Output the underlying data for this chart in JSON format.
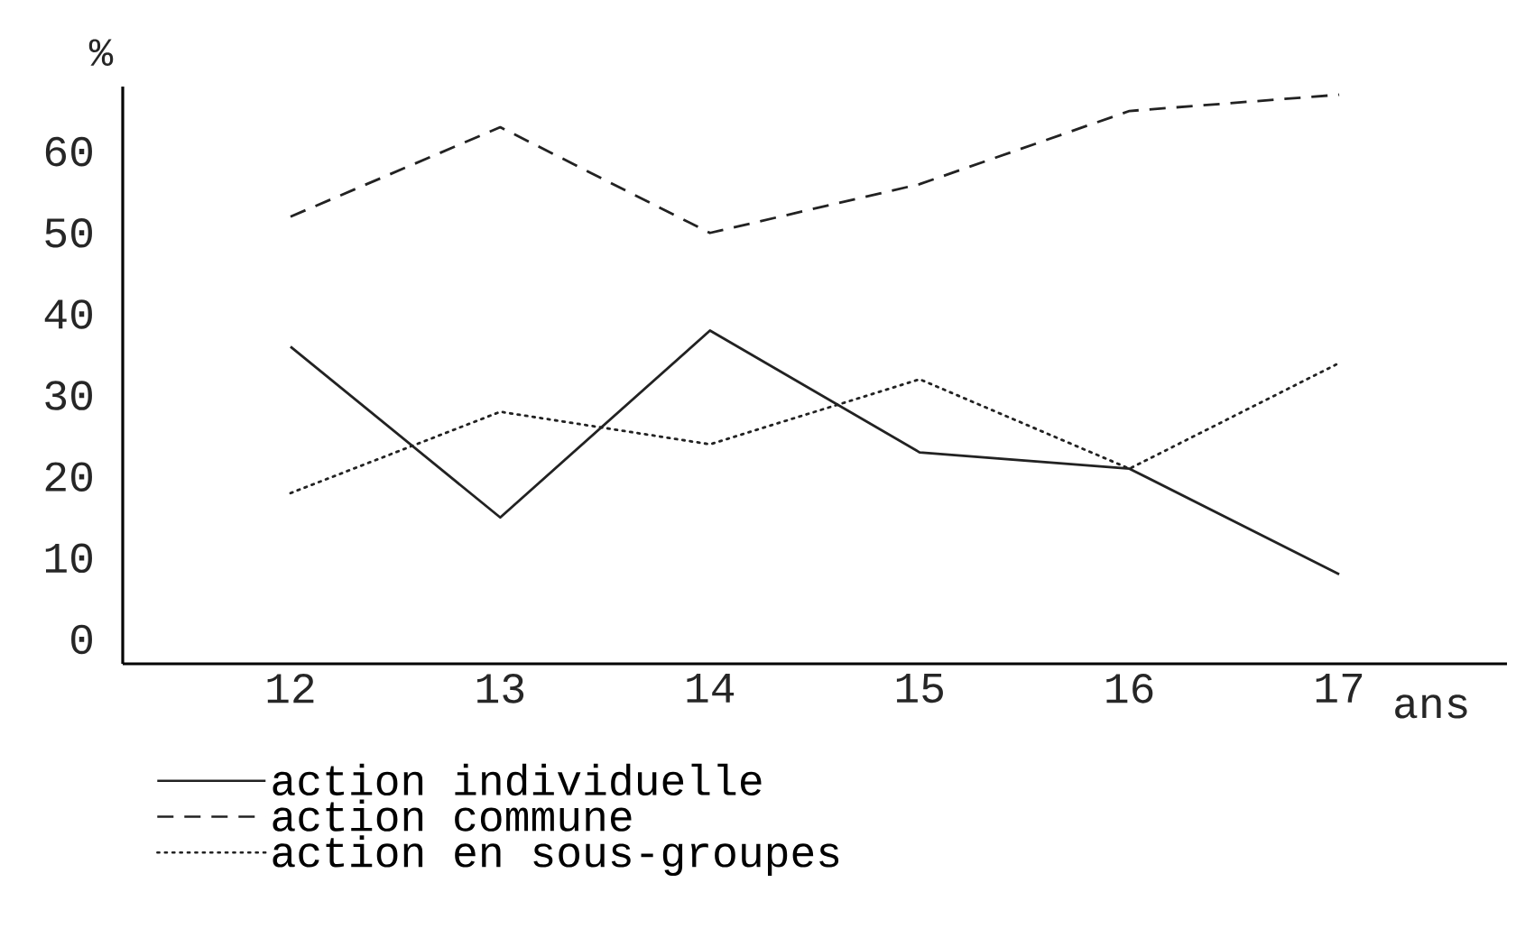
{
  "chart_data": {
    "type": "line",
    "ylabel": "%",
    "xlabel": "ans",
    "x": [
      12,
      13,
      14,
      15,
      16,
      17
    ],
    "series": [
      {
        "name": "action individuelle",
        "color": "#222222",
        "line_style": "solid",
        "values": [
          36,
          15,
          38,
          23,
          21,
          8
        ]
      },
      {
        "name": "action commune",
        "color": "#222222",
        "line_style": "dashed",
        "values": [
          52,
          63,
          50,
          56,
          65,
          67
        ]
      },
      {
        "name": "action en sous-groupes",
        "color": "#222222",
        "line_style": "dotted",
        "values": [
          18,
          28,
          24,
          32,
          21,
          34
        ]
      }
    ],
    "xlim": [
      11.2,
      17.8
    ],
    "ylim": [
      -3,
      68
    ],
    "xticks": [
      12,
      13,
      14,
      15,
      16,
      17
    ],
    "yticks": [
      0,
      10,
      20,
      30,
      40,
      50,
      60
    ],
    "grid": false,
    "legend": "bottom",
    "marker": "none"
  }
}
